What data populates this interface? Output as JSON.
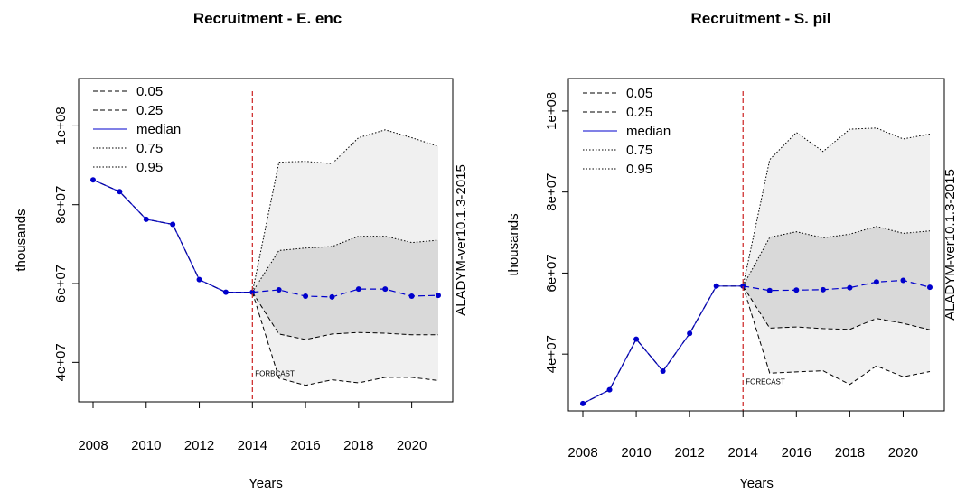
{
  "chart_data": [
    {
      "type": "line",
      "title": "Recruitment - E. enc",
      "xlabel": "Years",
      "ylabel": "thousands",
      "side_label": "ALADYM-ver10.1.3-2015",
      "forecast_label": "FORBCAST",
      "forecast_start": 2014,
      "xlim": [
        2008,
        2021
      ],
      "ylim": [
        30000000,
        112000000
      ],
      "x_ticks": [
        2008,
        2010,
        2012,
        2014,
        2016,
        2018,
        2020
      ],
      "y_ticks": [
        40000000,
        60000000,
        80000000,
        100000000
      ],
      "y_tick_labels": [
        "4e+07",
        "6e+07",
        "8e+07",
        "1e+08"
      ],
      "legend": [
        {
          "label": "0.05",
          "style": "dashed"
        },
        {
          "label": "0.25",
          "style": "dashed"
        },
        {
          "label": "median",
          "style": "solid"
        },
        {
          "label": "0.75",
          "style": "dotted"
        },
        {
          "label": "0.95",
          "style": "dotted"
        }
      ],
      "historical": {
        "x": [
          2008,
          2009,
          2010,
          2011,
          2012,
          2013,
          2014
        ],
        "values": [
          86300000,
          83300000,
          76300000,
          75000000,
          61000000,
          57800000,
          57800000
        ]
      },
      "forecast": {
        "x": [
          2014,
          2015,
          2016,
          2017,
          2018,
          2019,
          2020,
          2021
        ],
        "q05": [
          57800000,
          36000000,
          34200000,
          35600000,
          34800000,
          36200000,
          36200000,
          35400000
        ],
        "q25": [
          57800000,
          47200000,
          45800000,
          47200000,
          47600000,
          47400000,
          47000000,
          47000000
        ],
        "median": [
          57800000,
          58400000,
          56800000,
          56600000,
          58600000,
          58600000,
          56800000,
          57000000
        ],
        "q75": [
          57800000,
          68400000,
          69000000,
          69400000,
          72000000,
          72000000,
          70400000,
          71000000
        ],
        "q95": [
          57800000,
          90800000,
          91000000,
          90400000,
          97000000,
          99000000,
          97000000,
          94800000
        ]
      },
      "colors": {
        "median": "#0000cc",
        "forecast_line": "#cc2222",
        "band_outer": "#f0f0f0",
        "band_inner": "#d9d9d9"
      }
    },
    {
      "type": "line",
      "title": "Recruitment - S. pil",
      "xlabel": "Years",
      "ylabel": "thousands",
      "side_label": "ALADYM-ver10.1.3-2015",
      "forecast_label": "FORECAST",
      "forecast_start": 2014,
      "xlim": [
        2008,
        2021
      ],
      "ylim": [
        26000000,
        108000000
      ],
      "x_ticks": [
        2008,
        2010,
        2012,
        2014,
        2016,
        2018,
        2020
      ],
      "y_ticks": [
        40000000,
        60000000,
        80000000,
        100000000
      ],
      "y_tick_labels": [
        "4e+07",
        "6e+07",
        "8e+07",
        "1e+08"
      ],
      "legend": [
        {
          "label": "0.05",
          "style": "dashed"
        },
        {
          "label": "0.25",
          "style": "dashed"
        },
        {
          "label": "median",
          "style": "solid"
        },
        {
          "label": "0.75",
          "style": "dotted"
        },
        {
          "label": "0.95",
          "style": "dotted"
        }
      ],
      "historical": {
        "x": [
          2008,
          2009,
          2010,
          2011,
          2012,
          2013,
          2014
        ],
        "values": [
          27800000,
          31200000,
          43700000,
          35800000,
          45100000,
          56800000,
          56800000
        ]
      },
      "forecast": {
        "x": [
          2014,
          2015,
          2016,
          2017,
          2018,
          2019,
          2020,
          2021
        ],
        "q05": [
          56800000,
          35300000,
          35600000,
          35900000,
          32500000,
          37100000,
          34400000,
          35700000
        ],
        "q25": [
          56800000,
          46400000,
          46700000,
          46300000,
          46100000,
          48800000,
          47600000,
          46000000
        ],
        "median": [
          56800000,
          55700000,
          55800000,
          55900000,
          56400000,
          57800000,
          58200000,
          56500000
        ],
        "q75": [
          56800000,
          68800000,
          70200000,
          68700000,
          69600000,
          71500000,
          69800000,
          70400000
        ],
        "q95": [
          56800000,
          88000000,
          94700000,
          90000000,
          95500000,
          95800000,
          93100000,
          94300000
        ]
      },
      "colors": {
        "median": "#0000cc",
        "forecast_line": "#cc2222",
        "band_outer": "#f0f0f0",
        "band_inner": "#d9d9d9"
      }
    }
  ]
}
